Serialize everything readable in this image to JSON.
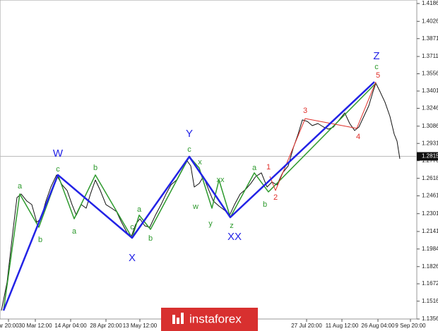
{
  "chart_data": {
    "type": "line",
    "xlim": [
      0,
      590
    ],
    "ylim": [
      1.1356,
      1.4186
    ],
    "yticks": [
      1.1356,
      1.1516,
      1.1672,
      1.1826,
      1.1984,
      1.2141,
      1.2301,
      1.2461,
      1.2618,
      1.2776,
      1.2931,
      1.3086,
      1.3246,
      1.3401,
      1.3556,
      1.3711,
      1.3871,
      1.4026,
      1.4186
    ],
    "xticks": [
      {
        "value": 12,
        "label": "ar 20:00"
      },
      {
        "value": 50,
        "label": "30 Mar 12:00"
      },
      {
        "value": 100,
        "label": "14 Apr 04:00"
      },
      {
        "value": 150,
        "label": "28 Apr 20:00"
      },
      {
        "value": 198,
        "label": "13 May 12:00"
      },
      {
        "value": 434,
        "label": "27 Jul 20:00"
      },
      {
        "value": 484,
        "label": "11 Aug 12:00"
      },
      {
        "value": 535,
        "label": "26 Aug 04:00"
      },
      {
        "value": 581,
        "label": "9 Sep 20:00"
      }
    ],
    "last_price": 1.2815,
    "series": [
      {
        "color": "#111111",
        "width": 1,
        "x": [
          2,
          10,
          18,
          24,
          30,
          38,
          45,
          52,
          58,
          65,
          72,
          80,
          88,
          95,
          102,
          108,
          115,
          122,
          128,
          135,
          142,
          150,
          158,
          165,
          172,
          180,
          186,
          192,
          198,
          205,
          212,
          220,
          228,
          235,
          242,
          250,
          258,
          265,
          270,
          275,
          282,
          288,
          295,
          302,
          310,
          318,
          325,
          332,
          340,
          348,
          355,
          362,
          370,
          378,
          385,
          392,
          400,
          408,
          415,
          422,
          428,
          435,
          442,
          450,
          458,
          465,
          472,
          480,
          488,
          495,
          502,
          508,
          515,
          522,
          528,
          532,
          538,
          545,
          552,
          558,
          562,
          566
        ],
        "values": [
          1.1432,
          1.1686,
          1.2129,
          1.2445,
          1.2477,
          1.2414,
          1.2382,
          1.2224,
          1.2255,
          1.2414,
          1.254,
          1.2648,
          1.2559,
          1.2509,
          1.2382,
          1.2287,
          1.2382,
          1.235,
          1.2477,
          1.2603,
          1.2509,
          1.2382,
          1.235,
          1.2319,
          1.2224,
          1.2129,
          1.2097,
          1.2205,
          1.2255,
          1.2192,
          1.2179,
          1.2287,
          1.2382,
          1.2477,
          1.2559,
          1.2603,
          1.2698,
          1.2774,
          1.273,
          1.254,
          1.2572,
          1.2635,
          1.2521,
          1.2414,
          1.2369,
          1.2331,
          1.2287,
          1.2382,
          1.2477,
          1.2521,
          1.2572,
          1.2635,
          1.2667,
          1.254,
          1.2585,
          1.2559,
          1.2667,
          1.273,
          1.2888,
          1.3015,
          1.3142,
          1.3129,
          1.3091,
          1.311,
          1.3078,
          1.3059,
          1.3078,
          1.3142,
          1.3205,
          1.311,
          1.3047,
          1.3078,
          1.3173,
          1.3268,
          1.3395,
          1.3471,
          1.3395,
          1.33,
          1.3173,
          1.3015,
          1.2952,
          1.2793
        ]
      },
      {
        "color": "#2e9a2e",
        "width": 1.5,
        "x": [
          5,
          28,
          55,
          82,
          105,
          135,
          187,
          197,
          213,
          268,
          282,
          300,
          310,
          326,
          360,
          380,
          532
        ],
        "values": [
          1.1432,
          1.2477,
          1.2179,
          1.2648,
          1.2255,
          1.2648,
          1.2084,
          1.2287,
          1.216,
          1.2812,
          1.2711,
          1.235,
          1.2603,
          1.2268,
          1.2667,
          1.2496,
          1.3471
        ]
      },
      {
        "color": "#e0302a",
        "width": 1,
        "x": [
          382,
          390,
          432,
          505,
          532
        ],
        "values": [
          1.2635,
          1.2509,
          1.3154,
          1.3066,
          1.3483
        ]
      },
      {
        "color": "#2323e6",
        "width": 2.5,
        "x": [
          5,
          82,
          187,
          268,
          326,
          530
        ],
        "values": [
          1.1432,
          1.2648,
          1.2084,
          1.2812,
          1.2268,
          1.3483
        ]
      }
    ],
    "annotations": [
      {
        "text": "W",
        "color": "#2323e6"
      },
      {
        "text": "c",
        "color": "#2e9a2e"
      },
      {
        "text": "a",
        "color": "#2e9a2e"
      },
      {
        "text": "b",
        "color": "#2e9a2e"
      },
      {
        "text": "a",
        "color": "#2e9a2e"
      },
      {
        "text": "b",
        "color": "#2e9a2e"
      },
      {
        "text": "c",
        "color": "#2e9a2e"
      },
      {
        "text": "X",
        "color": "#2323e6"
      },
      {
        "text": "a",
        "color": "#2e9a2e"
      },
      {
        "text": "b",
        "color": "#2e9a2e"
      },
      {
        "text": "Y",
        "color": "#2323e6"
      },
      {
        "text": "c",
        "color": "#2e9a2e"
      },
      {
        "text": "x",
        "color": "#2e9a2e"
      },
      {
        "text": "w",
        "color": "#2e9a2e"
      },
      {
        "text": "y",
        "color": "#2e9a2e"
      },
      {
        "text": "xx",
        "color": "#2e9a2e"
      },
      {
        "text": "z",
        "color": "#2e9a2e"
      },
      {
        "text": "XX",
        "color": "#2323e6"
      },
      {
        "text": "a",
        "color": "#2e9a2e"
      },
      {
        "text": "b",
        "color": "#2e9a2e"
      },
      {
        "text": "1",
        "color": "#e0302a"
      },
      {
        "text": "2",
        "color": "#e0302a"
      },
      {
        "text": "3",
        "color": "#e0302a"
      },
      {
        "text": "4",
        "color": "#e0302a"
      },
      {
        "text": "5",
        "color": "#e0302a"
      },
      {
        "text": "c",
        "color": "#2e9a2e"
      },
      {
        "text": "Z",
        "color": "#2323e6"
      }
    ],
    "logo": "instaforex"
  }
}
